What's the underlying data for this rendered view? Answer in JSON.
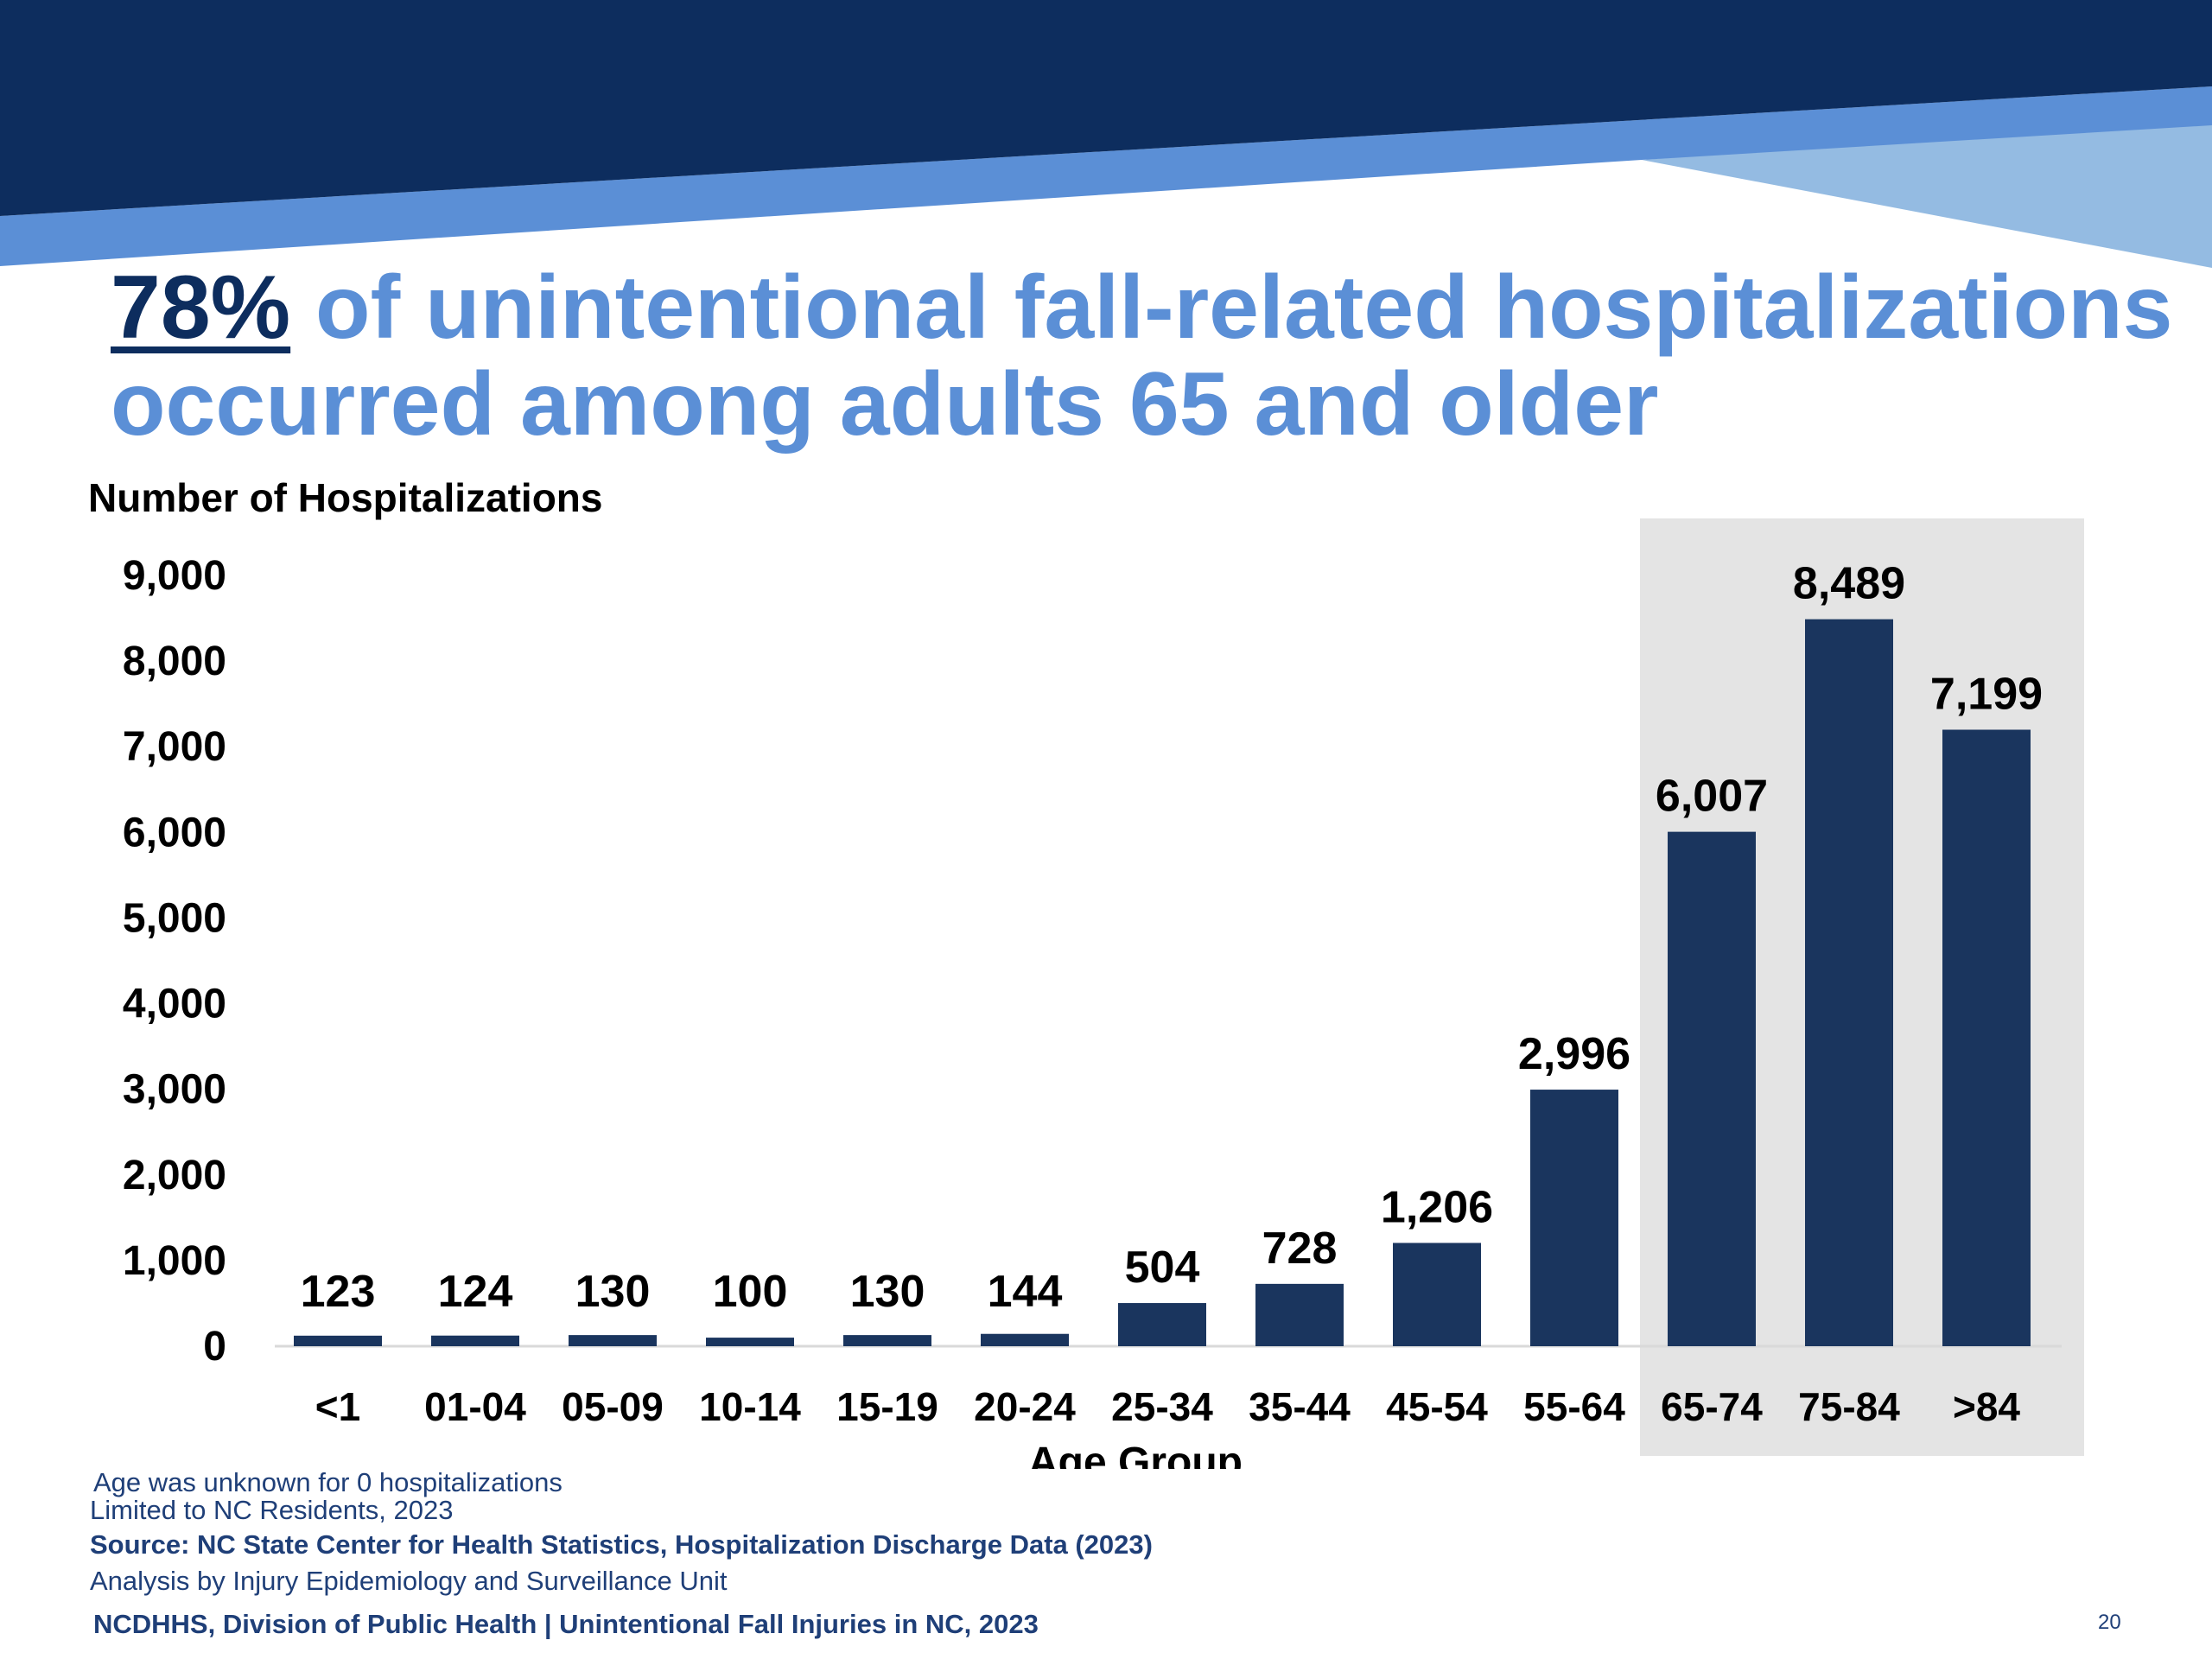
{
  "title": {
    "highlight": "78%",
    "rest": " of unintentional fall-related hospitalizations occurred among adults 65 and older"
  },
  "colors": {
    "banner_dark": "#0d2d5e",
    "banner_mid": "#5b8fd6",
    "banner_light": "#94bbe2",
    "bar": "#1a355e",
    "highlight_box": "#e4e4e4",
    "title": "#5b8fd6"
  },
  "chart_data": {
    "type": "bar",
    "title": "78% of unintentional fall-related hospitalizations occurred among adults 65 and older",
    "xlabel": "Age Group",
    "ylabel": "Number of Hospitalizations",
    "categories": [
      "<1",
      "01-04",
      "05-09",
      "10-14",
      "15-19",
      "20-24",
      "25-34",
      "35-44",
      "45-54",
      "55-64",
      "65-74",
      "75-84",
      ">84"
    ],
    "values": [
      123,
      124,
      130,
      100,
      130,
      144,
      504,
      728,
      1206,
      2996,
      6007,
      8489,
      7199
    ],
    "data_labels": [
      "123",
      "124",
      "130",
      "100",
      "130",
      "144",
      "504",
      "728",
      "1,206",
      "2,996",
      "6,007",
      "8,489",
      "7,199"
    ],
    "ylim": [
      0,
      9000
    ],
    "yticks": [
      0,
      1000,
      2000,
      3000,
      4000,
      5000,
      6000,
      7000,
      8000,
      9000
    ],
    "ytick_labels": [
      "0",
      "1,000",
      "2,000",
      "3,000",
      "4,000",
      "5,000",
      "6,000",
      "7,000",
      "8,000",
      "9,000"
    ],
    "highlighted_categories": [
      "65-74",
      "75-84",
      ">84"
    ],
    "grid": false,
    "legend": "none"
  },
  "footer": {
    "note_unknown_age": "Age was unknown for 0 hospitalizations",
    "note_residents": "Limited to NC Residents, 2023",
    "source": "Source: NC State Center for Health Statistics, Hospitalization Discharge Data (2023)",
    "analysis": "Analysis by Injury Epidemiology and Surveillance Unit",
    "org": "NCDHHS, Division of Public Health | Unintentional Fall Injuries in NC, 2023",
    "page_number": "20"
  }
}
